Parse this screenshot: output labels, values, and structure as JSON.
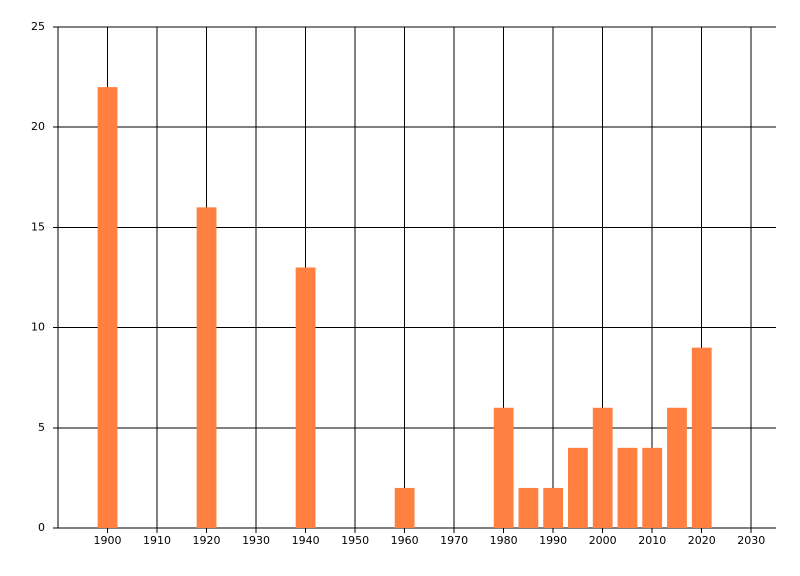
{
  "chart_data": {
    "type": "bar",
    "x": [
      1900,
      1920,
      1940,
      1960,
      1980,
      1985,
      1990,
      1995,
      2000,
      2005,
      2010,
      2015,
      2020
    ],
    "values": [
      22,
      16,
      13,
      2,
      6,
      2,
      2,
      4,
      6,
      4,
      4,
      6,
      9
    ],
    "color": "#ff8040",
    "xlim": [
      1890,
      2035
    ],
    "xticks": [
      1900,
      1910,
      1920,
      1930,
      1940,
      1950,
      1960,
      1970,
      1980,
      1990,
      2000,
      2010,
      2020,
      2030
    ],
    "ylim": [
      0,
      25
    ],
    "yticks": [
      0,
      5,
      10,
      15,
      20,
      25
    ],
    "grid": true
  }
}
